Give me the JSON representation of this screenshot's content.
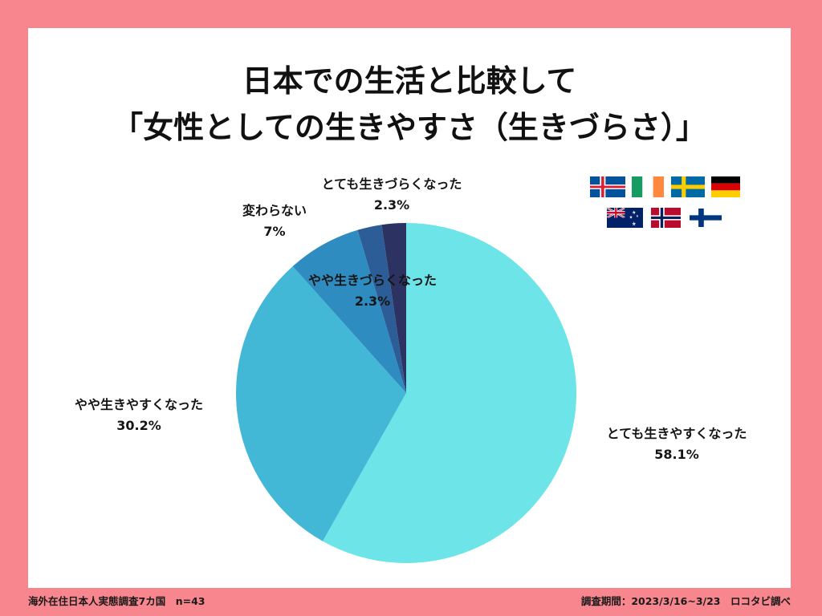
{
  "frame_color": "#F7868E",
  "flags": [
    "iceland",
    "ireland",
    "sweden",
    "germany",
    "new-zealand",
    "norway",
    "finland"
  ],
  "footer": {
    "survey": "海外在住日本人実態調査7カ国　n=43",
    "period": "調査期間：2023/3/16~3/23　ロコタビ調べ"
  },
  "chart_data": {
    "type": "pie",
    "title": [
      "日本での生活と比較して",
      "「女性としての生きやすさ（生きづらさ）」"
    ],
    "categories": [
      "とても生きやすくなった",
      "やや生きやすくなった",
      "変わらない",
      "やや生きづらくなった",
      "とても生きづらくなった"
    ],
    "values": [
      58.1,
      30.2,
      7,
      2.3,
      2.3
    ],
    "unit": "%",
    "colors": [
      "#6CE4E8",
      "#43B8D6",
      "#2E8CC0",
      "#2D5D96",
      "#2C3363"
    ]
  }
}
